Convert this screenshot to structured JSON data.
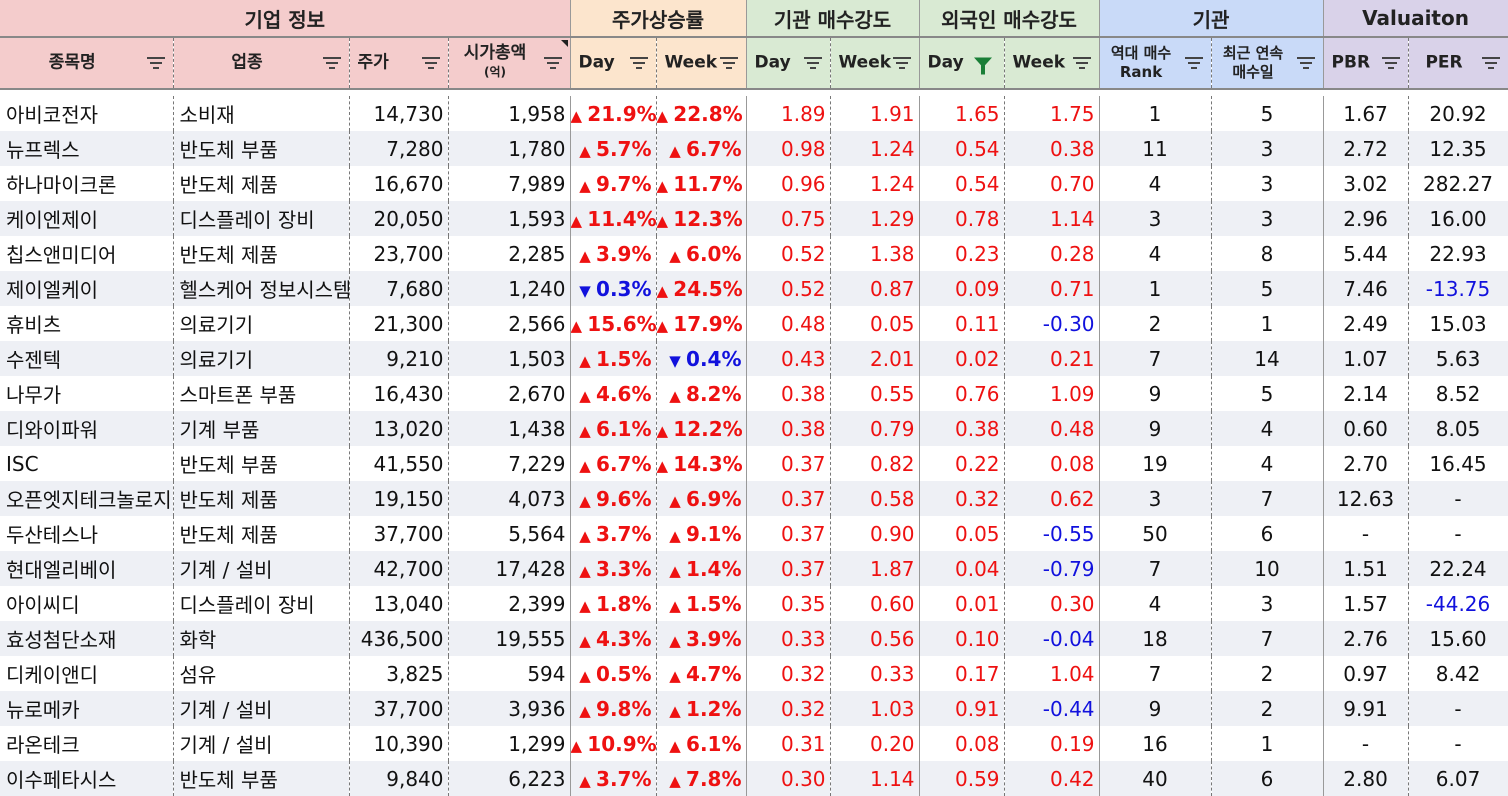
{
  "groups": [
    {
      "label": "기업 정보",
      "span": 4,
      "cls": "g-info"
    },
    {
      "label": "주가상승률",
      "span": 2,
      "cls": "g-price"
    },
    {
      "label": "기관 매수강도",
      "span": 2,
      "cls": "g-inst"
    },
    {
      "label": "외국인 매수강도",
      "span": 2,
      "cls": "g-fore"
    },
    {
      "label": "기관",
      "span": 2,
      "cls": "g-rank"
    },
    {
      "label": "Valuaiton",
      "span": 2,
      "cls": "g-val"
    }
  ],
  "columns": [
    {
      "label": "종목명",
      "sub": "",
      "cls": "g-info",
      "align": "center"
    },
    {
      "label": "업종",
      "sub": "",
      "cls": "g-info",
      "align": "center"
    },
    {
      "label": "주가",
      "sub": "",
      "cls": "g-info",
      "align": "left"
    },
    {
      "label": "시가총액",
      "sub": "(억)",
      "cls": "g-info",
      "align": "center"
    },
    {
      "label": "Day",
      "sub": "",
      "cls": "g-price",
      "align": "left"
    },
    {
      "label": "Week",
      "sub": "",
      "cls": "g-price",
      "align": "left"
    },
    {
      "label": "Day",
      "sub": "",
      "cls": "g-inst",
      "align": "left"
    },
    {
      "label": "Week",
      "sub": "",
      "cls": "g-inst",
      "align": "left"
    },
    {
      "label": "Day",
      "sub": "",
      "cls": "g-fore",
      "align": "left"
    },
    {
      "label": "Week",
      "sub": "",
      "cls": "g-fore",
      "align": "left"
    },
    {
      "label": "역대 매수\nRank",
      "sub": "",
      "cls": "g-rank",
      "align": "center"
    },
    {
      "label": "최근 연속\n매수일",
      "sub": "",
      "cls": "g-rank",
      "align": "center"
    },
    {
      "label": "PBR",
      "sub": "",
      "cls": "g-val",
      "align": "left"
    },
    {
      "label": "PER",
      "sub": "",
      "cls": "g-val",
      "align": "center"
    }
  ],
  "active_filter_column": 8,
  "sort_indicator_column": 3,
  "arrows": {
    "up": "▲",
    "down": "▼"
  },
  "colors": {
    "up": "#ee1111",
    "down": "#1111dd",
    "filter_active": "#1a7f37"
  },
  "rows": [
    {
      "name": "아비코전자",
      "sector": "소비재",
      "price": "14,730",
      "mcap": "1,958",
      "day_dir": "up",
      "day": "21.9%",
      "week_dir": "up",
      "week": "22.8%",
      "inst_day": "1.89",
      "inst_week": "1.91",
      "fore_day": "1.65",
      "fore_week": "1.75",
      "rank": "1",
      "streak": "5",
      "pbr": "1.67",
      "per": "20.92"
    },
    {
      "name": "뉴프렉스",
      "sector": "반도체 부품",
      "price": "7,280",
      "mcap": "1,780",
      "day_dir": "up",
      "day": "5.7%",
      "week_dir": "up",
      "week": "6.7%",
      "inst_day": "0.98",
      "inst_week": "1.24",
      "fore_day": "0.54",
      "fore_week": "0.38",
      "rank": "11",
      "streak": "3",
      "pbr": "2.72",
      "per": "12.35"
    },
    {
      "name": "하나마이크론",
      "sector": "반도체 제품",
      "price": "16,670",
      "mcap": "7,989",
      "day_dir": "up",
      "day": "9.7%",
      "week_dir": "up",
      "week": "11.7%",
      "inst_day": "0.96",
      "inst_week": "1.24",
      "fore_day": "0.54",
      "fore_week": "0.70",
      "rank": "4",
      "streak": "3",
      "pbr": "3.02",
      "per": "282.27"
    },
    {
      "name": "케이엔제이",
      "sector": "디스플레이 장비",
      "price": "20,050",
      "mcap": "1,593",
      "day_dir": "up",
      "day": "11.4%",
      "week_dir": "up",
      "week": "12.3%",
      "inst_day": "0.75",
      "inst_week": "1.29",
      "fore_day": "0.78",
      "fore_week": "1.14",
      "rank": "3",
      "streak": "3",
      "pbr": "2.96",
      "per": "16.00"
    },
    {
      "name": "칩스앤미디어",
      "sector": "반도체 제품",
      "price": "23,700",
      "mcap": "2,285",
      "day_dir": "up",
      "day": "3.9%",
      "week_dir": "up",
      "week": "6.0%",
      "inst_day": "0.52",
      "inst_week": "1.38",
      "fore_day": "0.23",
      "fore_week": "0.28",
      "rank": "4",
      "streak": "8",
      "pbr": "5.44",
      "per": "22.93"
    },
    {
      "name": "제이엘케이",
      "sector": "헬스케어 정보시스템",
      "price": "7,680",
      "mcap": "1,240",
      "day_dir": "down",
      "day": "0.3%",
      "week_dir": "up",
      "week": "24.5%",
      "inst_day": "0.52",
      "inst_week": "0.87",
      "fore_day": "0.09",
      "fore_week": "0.71",
      "rank": "1",
      "streak": "5",
      "pbr": "7.46",
      "per": "-13.75"
    },
    {
      "name": "휴비츠",
      "sector": "의료기기",
      "price": "21,300",
      "mcap": "2,566",
      "day_dir": "up",
      "day": "15.6%",
      "week_dir": "up",
      "week": "17.9%",
      "inst_day": "0.48",
      "inst_week": "0.05",
      "fore_day": "0.11",
      "fore_week": "-0.30",
      "rank": "2",
      "streak": "1",
      "pbr": "2.49",
      "per": "15.03"
    },
    {
      "name": "수젠텍",
      "sector": "의료기기",
      "price": "9,210",
      "mcap": "1,503",
      "day_dir": "up",
      "day": "1.5%",
      "week_dir": "down",
      "week": "0.4%",
      "inst_day": "0.43",
      "inst_week": "2.01",
      "fore_day": "0.02",
      "fore_week": "0.21",
      "rank": "7",
      "streak": "14",
      "pbr": "1.07",
      "per": "5.63"
    },
    {
      "name": "나무가",
      "sector": "스마트폰 부품",
      "price": "16,430",
      "mcap": "2,670",
      "day_dir": "up",
      "day": "4.6%",
      "week_dir": "up",
      "week": "8.2%",
      "inst_day": "0.38",
      "inst_week": "0.55",
      "fore_day": "0.76",
      "fore_week": "1.09",
      "rank": "9",
      "streak": "5",
      "pbr": "2.14",
      "per": "8.52"
    },
    {
      "name": "디와이파워",
      "sector": "기계 부품",
      "price": "13,020",
      "mcap": "1,438",
      "day_dir": "up",
      "day": "6.1%",
      "week_dir": "up",
      "week": "12.2%",
      "inst_day": "0.38",
      "inst_week": "0.79",
      "fore_day": "0.38",
      "fore_week": "0.48",
      "rank": "9",
      "streak": "4",
      "pbr": "0.60",
      "per": "8.05"
    },
    {
      "name": "ISC",
      "sector": "반도체 부품",
      "price": "41,550",
      "mcap": "7,229",
      "day_dir": "up",
      "day": "6.7%",
      "week_dir": "up",
      "week": "14.3%",
      "inst_day": "0.37",
      "inst_week": "0.82",
      "fore_day": "0.22",
      "fore_week": "0.08",
      "rank": "19",
      "streak": "4",
      "pbr": "2.70",
      "per": "16.45"
    },
    {
      "name": "오픈엣지테크놀로지",
      "sector": "반도체 제품",
      "price": "19,150",
      "mcap": "4,073",
      "day_dir": "up",
      "day": "9.6%",
      "week_dir": "up",
      "week": "6.9%",
      "inst_day": "0.37",
      "inst_week": "0.58",
      "fore_day": "0.32",
      "fore_week": "0.62",
      "rank": "3",
      "streak": "7",
      "pbr": "12.63",
      "per": "-"
    },
    {
      "name": "두산테스나",
      "sector": "반도체 제품",
      "price": "37,700",
      "mcap": "5,564",
      "day_dir": "up",
      "day": "3.7%",
      "week_dir": "up",
      "week": "9.1%",
      "inst_day": "0.37",
      "inst_week": "0.90",
      "fore_day": "0.05",
      "fore_week": "-0.55",
      "rank": "50",
      "streak": "6",
      "pbr": "-",
      "per": "-"
    },
    {
      "name": "현대엘리베이",
      "sector": "기계 / 설비",
      "price": "42,700",
      "mcap": "17,428",
      "day_dir": "up",
      "day": "3.3%",
      "week_dir": "up",
      "week": "1.4%",
      "inst_day": "0.37",
      "inst_week": "1.87",
      "fore_day": "0.04",
      "fore_week": "-0.79",
      "rank": "7",
      "streak": "10",
      "pbr": "1.51",
      "per": "22.24"
    },
    {
      "name": "아이씨디",
      "sector": "디스플레이 장비",
      "price": "13,040",
      "mcap": "2,399",
      "day_dir": "up",
      "day": "1.8%",
      "week_dir": "up",
      "week": "1.5%",
      "inst_day": "0.35",
      "inst_week": "0.60",
      "fore_day": "0.01",
      "fore_week": "0.30",
      "rank": "4",
      "streak": "3",
      "pbr": "1.57",
      "per": "-44.26"
    },
    {
      "name": "효성첨단소재",
      "sector": "화학",
      "price": "436,500",
      "mcap": "19,555",
      "day_dir": "up",
      "day": "4.3%",
      "week_dir": "up",
      "week": "3.9%",
      "inst_day": "0.33",
      "inst_week": "0.56",
      "fore_day": "0.10",
      "fore_week": "-0.04",
      "rank": "18",
      "streak": "7",
      "pbr": "2.76",
      "per": "15.60"
    },
    {
      "name": "디케이앤디",
      "sector": "섬유",
      "price": "3,825",
      "mcap": "594",
      "day_dir": "up",
      "day": "0.5%",
      "week_dir": "up",
      "week": "4.7%",
      "inst_day": "0.32",
      "inst_week": "0.33",
      "fore_day": "0.17",
      "fore_week": "1.04",
      "rank": "7",
      "streak": "2",
      "pbr": "0.97",
      "per": "8.42"
    },
    {
      "name": "뉴로메카",
      "sector": "기계 / 설비",
      "price": "37,700",
      "mcap": "3,936",
      "day_dir": "up",
      "day": "9.8%",
      "week_dir": "up",
      "week": "1.2%",
      "inst_day": "0.32",
      "inst_week": "1.03",
      "fore_day": "0.91",
      "fore_week": "-0.44",
      "rank": "9",
      "streak": "2",
      "pbr": "9.91",
      "per": "-"
    },
    {
      "name": "라온테크",
      "sector": "기계 / 설비",
      "price": "10,390",
      "mcap": "1,299",
      "day_dir": "up",
      "day": "10.9%",
      "week_dir": "up",
      "week": "6.1%",
      "inst_day": "0.31",
      "inst_week": "0.20",
      "fore_day": "0.08",
      "fore_week": "0.19",
      "rank": "16",
      "streak": "1",
      "pbr": "-",
      "per": "-"
    },
    {
      "name": "이수페타시스",
      "sector": "반도체 부품",
      "price": "9,840",
      "mcap": "6,223",
      "day_dir": "up",
      "day": "3.7%",
      "week_dir": "up",
      "week": "7.8%",
      "inst_day": "0.30",
      "inst_week": "1.14",
      "fore_day": "0.59",
      "fore_week": "0.42",
      "rank": "40",
      "streak": "6",
      "pbr": "2.80",
      "per": "6.07"
    }
  ]
}
